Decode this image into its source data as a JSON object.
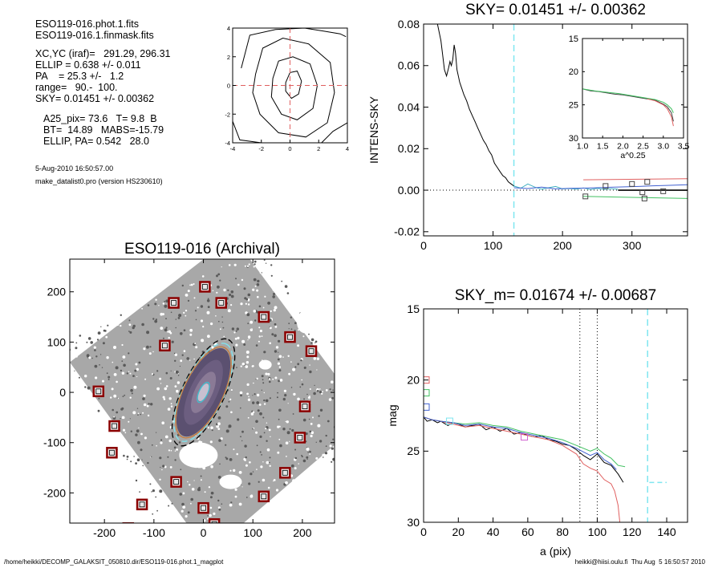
{
  "info": {
    "line1": "ESO119-016.phot.1.fits",
    "line2": "ESO119-016.1.finmask.fits",
    "line3": "XC,YC (iraf)=   291.29, 296.31",
    "line4": "ELLIP = 0.638 +/- 0.011",
    "line5": "PA    = 25.3 +/-   1.2",
    "line6": "range=   90.-  100.",
    "line7": "SKY= 0.01451 +/- 0.00362",
    "line8": "A25_pix= 73.6   T= 9.8  B",
    "line9": "BT=  14.89   MABS=-15.79",
    "line10": "ELLIP, PA= 0.542   28.0",
    "date": "5-Aug-2010 16:50:57.00",
    "program": "make_datalist0.pro (version HS230610)"
  },
  "footer": {
    "path": "/home/heikki/DECOMP_GALAKSIT_050810.dir/ESO119-016.phot.1_magplot",
    "user": "heikki@hiisi.oulu.fi  Thu Aug  5 16:50:57 2010"
  },
  "chart_data": [
    {
      "type": "contour",
      "title": "",
      "xlim": [
        -4,
        4
      ],
      "ylim": [
        -4,
        4
      ],
      "xticks": [
        -4,
        -2,
        0,
        2,
        4
      ],
      "yticks": [
        -4,
        -2,
        0,
        2,
        4
      ],
      "crosshair": {
        "x": 0,
        "y": 0,
        "color": "#e06060"
      },
      "contours": [
        [
          [
            -0.3,
            0.2
          ],
          [
            0.0,
            0.9
          ],
          [
            0.5,
            1.0
          ],
          [
            0.8,
            0.3
          ],
          [
            0.6,
            -0.6
          ],
          [
            0.1,
            -0.9
          ],
          [
            -0.3,
            -0.4
          ],
          [
            -0.3,
            0.2
          ]
        ],
        [
          [
            -1.2,
            0.5
          ],
          [
            -0.8,
            1.7
          ],
          [
            0.2,
            2.0
          ],
          [
            1.4,
            1.5
          ],
          [
            1.9,
            0.0
          ],
          [
            1.6,
            -1.6
          ],
          [
            0.5,
            -2.4
          ],
          [
            -0.6,
            -2.0
          ],
          [
            -1.3,
            -0.8
          ],
          [
            -1.2,
            0.5
          ]
        ],
        [
          [
            -2.4,
            0.8
          ],
          [
            -1.9,
            2.6
          ],
          [
            -0.5,
            3.3
          ],
          [
            1.3,
            2.9
          ],
          [
            2.8,
            1.6
          ],
          [
            3.1,
            -0.5
          ],
          [
            2.6,
            -2.6
          ],
          [
            1.1,
            -3.6
          ],
          [
            -0.8,
            -3.3
          ],
          [
            -2.1,
            -2.0
          ],
          [
            -2.6,
            -0.5
          ],
          [
            -2.4,
            0.8
          ]
        ],
        [
          [
            -3.4,
            1.2
          ],
          [
            -2.8,
            3.5
          ],
          [
            -1.0,
            3.9
          ],
          [
            1.0,
            4.0
          ],
          [
            2.3,
            3.8
          ],
          [
            3.5,
            3.6
          ],
          [
            3.9,
            3.4
          ]
        ],
        [
          [
            -4.0,
            -2.5
          ],
          [
            -3.5,
            -3.8
          ],
          [
            -2.0,
            -4.0
          ]
        ],
        [
          [
            2.2,
            -4.0
          ],
          [
            3.0,
            -3.2
          ],
          [
            4.0,
            -2.6
          ]
        ]
      ]
    },
    {
      "type": "line",
      "title": "SKY= 0.01451 +/- 0.00362",
      "xlabel": "",
      "ylabel": "INTENS-SKY",
      "xlim": [
        0,
        380
      ],
      "ylim": [
        -0.022,
        0.08
      ],
      "xticks": [
        0,
        100,
        200,
        300
      ],
      "yticks": [
        -0.02,
        0.0,
        0.02,
        0.04,
        0.06,
        0.08
      ],
      "ytick_labels": [
        "-0.02",
        "0.00",
        "0.02",
        "0.04",
        "0.06",
        "0.08"
      ],
      "vline": {
        "x": 130,
        "color": "#7fe6f0"
      },
      "zero_line": {
        "y": 0,
        "style": "dotted"
      },
      "series": [
        {
          "color": "#000000",
          "x": [
            20,
            25,
            30,
            33,
            36,
            38,
            40,
            42,
            44,
            46,
            48,
            50,
            52,
            55,
            58,
            62,
            66,
            70,
            74,
            78,
            82,
            86,
            90,
            94,
            98,
            102,
            106,
            110,
            114,
            118,
            122,
            126,
            130
          ],
          "y": [
            0.08,
            0.072,
            0.058,
            0.055,
            0.059,
            0.062,
            0.06,
            0.063,
            0.07,
            0.066,
            0.058,
            0.055,
            0.052,
            0.049,
            0.046,
            0.043,
            0.039,
            0.036,
            0.033,
            0.03,
            0.027,
            0.024,
            0.022,
            0.019,
            0.017,
            0.013,
            0.011,
            0.009,
            0.007,
            0.006,
            0.004,
            0.003,
            0.002
          ]
        },
        {
          "color": "#40b0c0",
          "x": [
            130,
            140,
            150,
            160,
            170,
            180,
            190,
            200,
            210,
            220,
            230,
            240,
            250,
            260,
            270,
            280
          ],
          "y": [
            0.002,
            0.001,
            0.003,
            0.0015,
            0.0005,
            0.0012,
            0.0018,
            0.0006,
            0.0008,
            0.0005,
            0.0011,
            0.0003,
            0.0009,
            0.0004,
            0.0007,
            0.0005
          ]
        },
        {
          "color": "#4060d0",
          "x": [
            130,
            150,
            170,
            190,
            210,
            230,
            250,
            270,
            290,
            310,
            330,
            350,
            380
          ],
          "y": [
            0.0012,
            0.0008,
            0.0015,
            0.0006,
            0.0009,
            0.001,
            0.0012,
            0.0014,
            0.0016,
            0.0018,
            0.0021,
            0.0023,
            0.0026
          ]
        },
        {
          "color": "#e06060",
          "x": [
            230,
            380
          ],
          "y": [
            0.005,
            0.0055
          ]
        },
        {
          "color": "#000000",
          "x": [
            280,
            380
          ],
          "y": [
            0.0,
            0.0
          ]
        },
        {
          "color": "#40c060",
          "x": [
            230,
            380
          ],
          "y": [
            -0.003,
            -0.004
          ]
        }
      ],
      "markers": [
        {
          "x": 233,
          "y": -0.003
        },
        {
          "x": 262,
          "y": 0.002
        },
        {
          "x": 300,
          "y": 0.003
        },
        {
          "x": 315,
          "y": -0.001
        },
        {
          "x": 322,
          "y": 0.004
        },
        {
          "x": 345,
          "y": -0.0005
        },
        {
          "x": 318,
          "y": -0.004
        }
      ]
    },
    {
      "type": "line",
      "title": "",
      "xlabel": "a^0.25",
      "ylabel": "",
      "xlim": [
        1.0,
        3.5
      ],
      "ylim": [
        30,
        15
      ],
      "inverted_y": true,
      "xticks": [
        1.0,
        1.5,
        2.0,
        2.5,
        3.0,
        3.5
      ],
      "xtick_labels": [
        "1.0",
        "1.5",
        "2.0",
        "2.5",
        "3.0",
        "3.5"
      ],
      "yticks": [
        15,
        20,
        25,
        30
      ],
      "series": [
        {
          "color": "#404040",
          "x": [
            1.0,
            1.2,
            1.4,
            1.6,
            1.8,
            2.0,
            2.2,
            2.4,
            2.6,
            2.8,
            2.9,
            3.0,
            3.1,
            3.2,
            3.25
          ],
          "y": [
            22.6,
            22.9,
            23.0,
            23.2,
            23.4,
            23.5,
            23.7,
            23.9,
            24.1,
            24.3,
            24.6,
            24.9,
            25.3,
            26.2,
            27.5
          ]
        },
        {
          "color": "#40c060",
          "x": [
            1.0,
            1.3,
            1.6,
            1.9,
            2.2,
            2.5,
            2.8,
            3.0,
            3.1,
            3.2,
            3.25
          ],
          "y": [
            22.6,
            22.9,
            23.1,
            23.3,
            23.6,
            23.9,
            24.2,
            24.6,
            25.0,
            25.6,
            26.2
          ]
        },
        {
          "color": "#e06060",
          "x": [
            2.6,
            2.8,
            3.0,
            3.1,
            3.2,
            3.25
          ],
          "y": [
            24.1,
            24.4,
            25.0,
            25.6,
            26.8,
            28.2
          ]
        }
      ]
    },
    {
      "type": "image",
      "title": "ESO119-016 (Archival)",
      "xlim": [
        -270,
        265
      ],
      "ylim": [
        -260,
        265
      ],
      "xticks": [
        -200,
        -100,
        0,
        100,
        200
      ],
      "yticks": [
        -200,
        -100,
        0,
        100,
        200
      ],
      "sky_boxes": [
        {
          "x": 3,
          "y": 210
        },
        {
          "x": -60,
          "y": 178
        },
        {
          "x": 36,
          "y": 178
        },
        {
          "x": 122,
          "y": 150
        },
        {
          "x": 175,
          "y": 110
        },
        {
          "x": 218,
          "y": 82
        },
        {
          "x": -78,
          "y": 93
        },
        {
          "x": -212,
          "y": 2
        },
        {
          "x": 205,
          "y": -28
        },
        {
          "x": -180,
          "y": -67
        },
        {
          "x": -185,
          "y": -120
        },
        {
          "x": 195,
          "y": -90
        },
        {
          "x": 165,
          "y": -160
        },
        {
          "x": 122,
          "y": -207
        },
        {
          "x": -55,
          "y": -178
        },
        {
          "x": 0,
          "y": -230
        },
        {
          "x": 22,
          "y": -262
        },
        {
          "x": -152,
          "y": -270
        },
        {
          "x": -124,
          "y": -223
        }
      ],
      "ellipses": [
        {
          "semi_major": 118,
          "ellipticity": 0.638,
          "pa": 25.3,
          "color": "#000000",
          "dash": true
        },
        {
          "semi_major": 108,
          "ellipticity": 0.62,
          "pa": 25.3,
          "color": "#7fe6f0",
          "dash": true
        },
        {
          "semi_major": 100,
          "ellipticity": 0.6,
          "pa": 25.3,
          "color": "#c87a3a",
          "dash": false
        },
        {
          "semi_major": 22,
          "ellipticity": 0.6,
          "pa": 25.3,
          "color": "#40c0d0",
          "dash": false
        }
      ]
    },
    {
      "type": "line",
      "title": "SKY_m=  0.01674 +/- 0.00687",
      "xlabel": "a (pix)",
      "ylabel": "mag",
      "xlim": [
        0,
        152
      ],
      "ylim": [
        30,
        15
      ],
      "inverted_y": true,
      "xticks": [
        0,
        20,
        40,
        60,
        80,
        100,
        120,
        140
      ],
      "yticks": [
        15,
        20,
        25,
        30
      ],
      "vlines": [
        {
          "x": 90,
          "color": "#000000",
          "style": "dotted"
        },
        {
          "x": 100,
          "color": "#000000",
          "style": "dotted"
        },
        {
          "x": 129,
          "color": "#7fe6f0",
          "style": "dashed"
        }
      ],
      "hline_segment": {
        "x": [
          130,
          140
        ],
        "y": 27.2,
        "color": "#7fe6f0"
      },
      "left_markers": [
        {
          "y": 20.0,
          "color": "#e06060"
        },
        {
          "y": 20.9,
          "color": "#40c060"
        },
        {
          "y": 21.9,
          "color": "#4060d0"
        }
      ],
      "square_markers": [
        {
          "x": 15,
          "y": 22.9,
          "color": "#7fe6f0"
        },
        {
          "x": 58,
          "y": 24.0,
          "color": "#d060d0"
        }
      ],
      "series": [
        {
          "color": "#000000",
          "x": [
            0,
            2,
            5,
            8,
            10,
            14,
            17,
            20,
            24,
            28,
            32,
            36,
            40,
            44,
            48,
            52,
            56,
            60,
            64,
            68,
            72,
            76,
            80,
            84,
            88,
            92,
            96,
            100,
            104,
            108,
            112,
            115
          ],
          "y": [
            22.6,
            22.9,
            22.8,
            23.0,
            22.9,
            23.2,
            23.0,
            23.1,
            23.3,
            23.2,
            23.1,
            23.5,
            23.3,
            23.6,
            23.4,
            23.8,
            23.7,
            23.9,
            24.0,
            23.9,
            24.2,
            24.3,
            24.5,
            24.6,
            24.9,
            25.3,
            25.6,
            25.2,
            25.8,
            26.0,
            26.6,
            27.2
          ]
        },
        {
          "color": "#40c060",
          "x": [
            0,
            5,
            10,
            17,
            24,
            32,
            40,
            48,
            56,
            64,
            72,
            80,
            88,
            96,
            100,
            104,
            108,
            112,
            116
          ],
          "y": [
            22.6,
            22.8,
            22.9,
            23.0,
            23.1,
            23.0,
            23.2,
            23.3,
            23.6,
            23.8,
            24.0,
            24.2,
            24.6,
            25.0,
            24.8,
            25.2,
            25.5,
            26.0,
            26.1
          ]
        },
        {
          "color": "#e06060",
          "x": [
            0,
            5,
            10,
            17,
            24,
            32,
            40,
            48,
            56,
            64,
            72,
            80,
            88,
            92,
            96,
            100,
            104,
            108,
            110,
            112,
            113
          ],
          "y": [
            22.6,
            22.8,
            22.9,
            23.1,
            23.3,
            23.2,
            23.4,
            23.6,
            23.8,
            24.0,
            24.2,
            24.6,
            25.2,
            25.9,
            26.2,
            26.4,
            27.0,
            27.3,
            27.8,
            28.8,
            30.0
          ]
        },
        {
          "color": "#4060d0",
          "x": [
            0,
            5,
            10,
            17,
            24,
            32,
            40,
            48,
            56,
            64,
            72,
            80,
            88,
            96,
            100,
            104,
            108,
            111
          ],
          "y": [
            22.6,
            22.8,
            22.9,
            23.0,
            23.2,
            23.1,
            23.3,
            23.4,
            23.7,
            23.9,
            24.1,
            24.4,
            24.8,
            25.3,
            25.1,
            25.6,
            25.9,
            26.3
          ]
        }
      ]
    }
  ]
}
